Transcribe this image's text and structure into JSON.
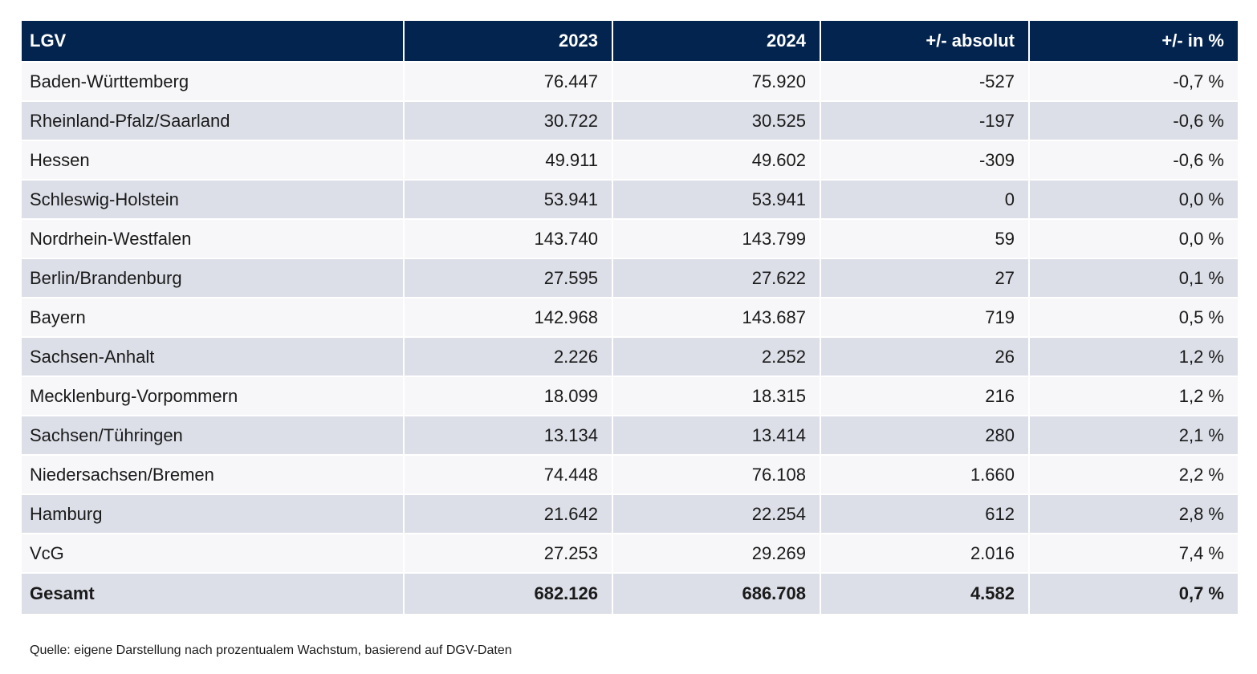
{
  "table": {
    "headers": [
      "LGV",
      "2023",
      "2024",
      "+/- absolut",
      "+/- in %"
    ],
    "rows": [
      [
        "Baden-Württemberg",
        "76.447",
        "75.920",
        "-527",
        "-0,7 %"
      ],
      [
        "Rheinland-Pfalz/Saarland",
        "30.722",
        "30.525",
        "-197",
        "-0,6 %"
      ],
      [
        "Hessen",
        "49.911",
        "49.602",
        "-309",
        "-0,6 %"
      ],
      [
        "Schleswig-Holstein",
        "53.941",
        "53.941",
        "0",
        "0,0 %"
      ],
      [
        "Nordrhein-Westfalen",
        "143.740",
        "143.799",
        "59",
        "0,0 %"
      ],
      [
        "Berlin/Brandenburg",
        "27.595",
        "27.622",
        "27",
        "0,1 %"
      ],
      [
        "Bayern",
        "142.968",
        "143.687",
        "719",
        "0,5 %"
      ],
      [
        "Sachsen-Anhalt",
        "2.226",
        "2.252",
        "26",
        "1,2 %"
      ],
      [
        "Mecklenburg-Vorpommern",
        "18.099",
        "18.315",
        "216",
        "1,2 %"
      ],
      [
        "Sachsen/Tühringen",
        "13.134",
        "13.414",
        "280",
        "2,1 %"
      ],
      [
        "Niedersachsen/Bremen",
        "74.448",
        "76.108",
        "1.660",
        "2,2 %"
      ],
      [
        "Hamburg",
        "21.642",
        "22.254",
        "612",
        "2,8 %"
      ],
      [
        "VcG",
        "27.253",
        "29.269",
        "2.016",
        "7,4 %"
      ]
    ],
    "total": [
      "Gesamt",
      "682.126",
      "686.708",
      "4.582",
      "0,7 %"
    ]
  },
  "source": "Quelle: eigene Darstellung nach prozentualem Wachstum, basierend auf DGV-Daten",
  "colors": {
    "header_bg": "#03244f",
    "row_light": "#f7f7f9",
    "row_dark": "#dcdfe8"
  }
}
